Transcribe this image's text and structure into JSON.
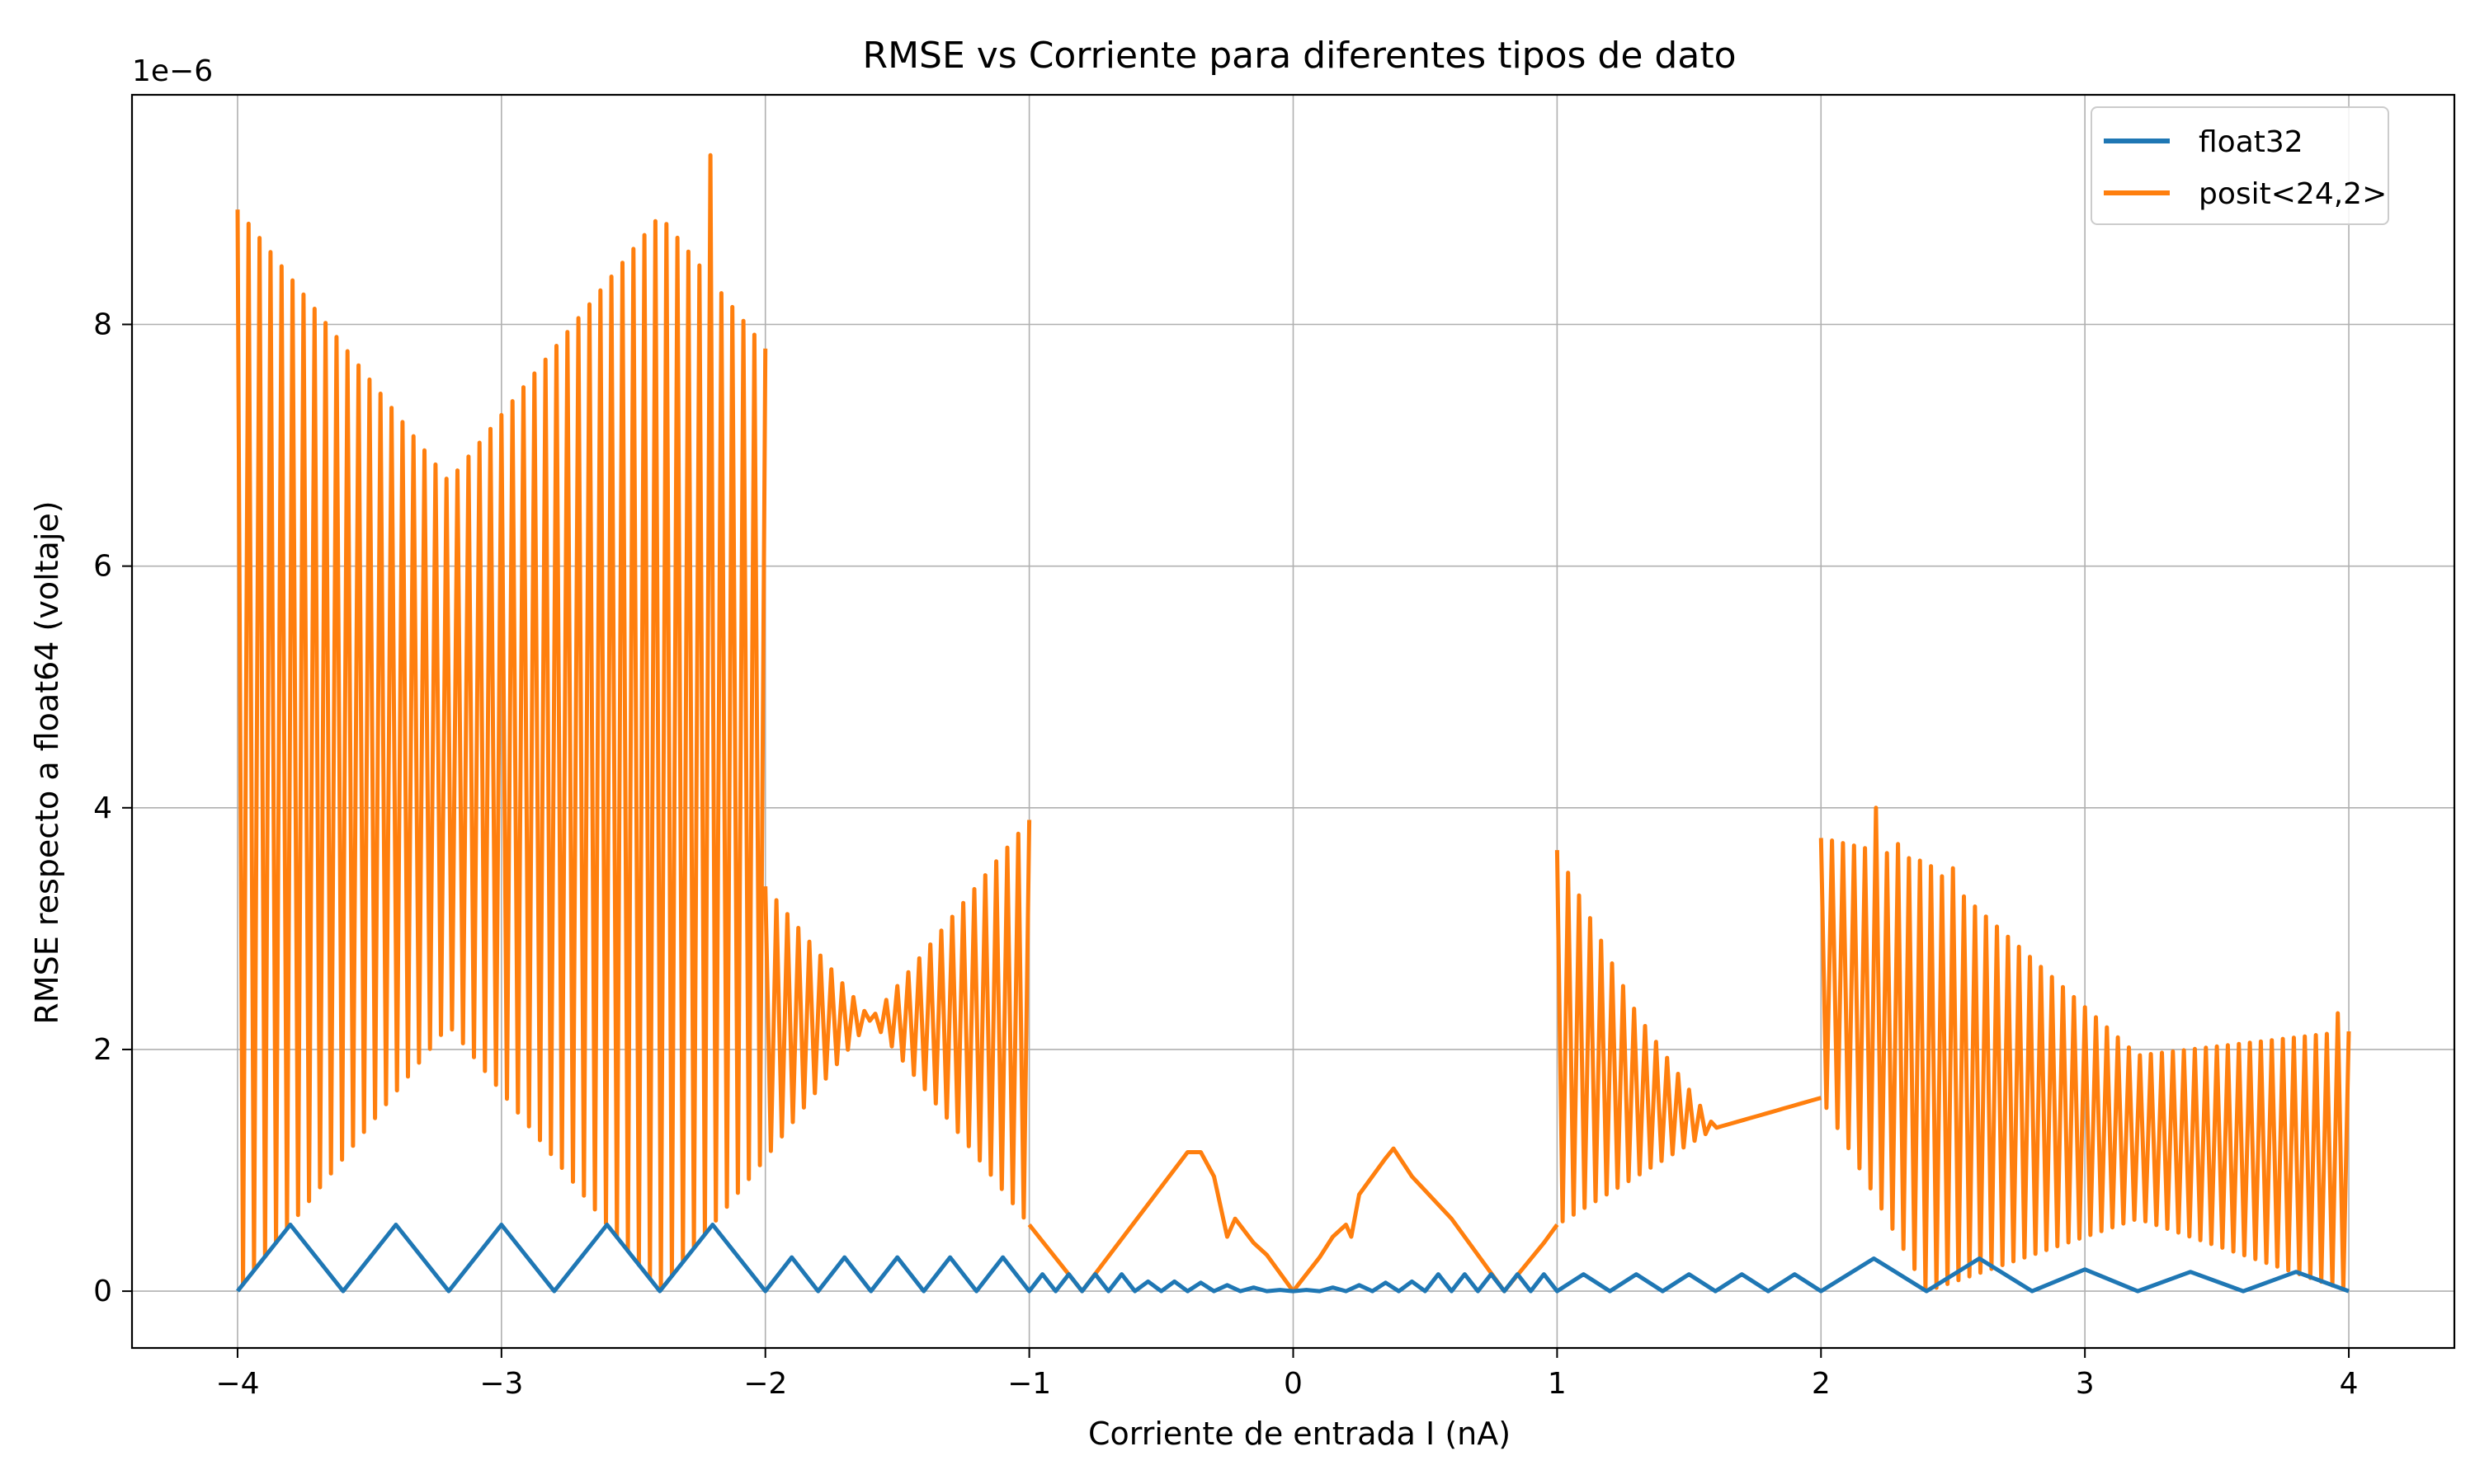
{
  "chart_data": {
    "type": "line",
    "title": "RMSE vs Corriente para diferentes tipos de dato",
    "xlabel": "Corriente de entrada I (nA)",
    "ylabel": "RMSE respecto a float64 (voltaje)",
    "y_offset_label": "1e−6",
    "xlim": [
      -4.4,
      4.4
    ],
    "ylim": [
      -0.47,
      9.9
    ],
    "y_scale_factor": 1e-06,
    "x_ticks": [
      -4,
      -3,
      -2,
      -1,
      0,
      1,
      2,
      3,
      4
    ],
    "x_tick_labels": [
      "−4",
      "−3",
      "−2",
      "−1",
      "0",
      "1",
      "2",
      "3",
      "4"
    ],
    "y_ticks": [
      0,
      2,
      4,
      6,
      8
    ],
    "y_tick_labels": [
      "0",
      "2",
      "4",
      "6",
      "8"
    ],
    "grid": true,
    "legend_position": "top-right",
    "series": [
      {
        "name": "float32",
        "color": "#1f77b4",
        "x": [
          -4.0,
          -3.8,
          -3.6,
          -3.4,
          -3.2,
          -3.0,
          -2.8,
          -2.6,
          -2.4,
          -2.2,
          -2.0,
          -1.9,
          -1.8,
          -1.7,
          -1.6,
          -1.5,
          -1.4,
          -1.3,
          -1.2,
          -1.1,
          -1.0,
          -0.95,
          -0.9,
          -0.85,
          -0.8,
          -0.75,
          -0.7,
          -0.65,
          -0.6,
          -0.55,
          -0.5,
          -0.45,
          -0.4,
          -0.35,
          -0.3,
          -0.25,
          -0.2,
          -0.15,
          -0.1,
          -0.05,
          0.0,
          0.05,
          0.1,
          0.15,
          0.2,
          0.25,
          0.3,
          0.35,
          0.4,
          0.45,
          0.5,
          0.55,
          0.6,
          0.65,
          0.7,
          0.75,
          0.8,
          0.85,
          0.9,
          0.95,
          1.0,
          1.1,
          1.2,
          1.3,
          1.4,
          1.5,
          1.6,
          1.7,
          1.8,
          1.9,
          2.0,
          2.2,
          2.4,
          2.6,
          2.8,
          3.0,
          3.2,
          3.4,
          3.6,
          3.8,
          4.0
        ],
        "y": [
          0.0,
          0.55,
          0.0,
          0.55,
          0.0,
          0.55,
          0.0,
          0.55,
          0.0,
          0.55,
          0.0,
          0.28,
          0.0,
          0.28,
          0.0,
          0.28,
          0.0,
          0.28,
          0.0,
          0.28,
          0.0,
          0.14,
          0.0,
          0.14,
          0.0,
          0.14,
          0.0,
          0.14,
          0.0,
          0.08,
          0.0,
          0.08,
          0.0,
          0.07,
          0.0,
          0.05,
          0.0,
          0.03,
          0.0,
          0.01,
          0.0,
          0.01,
          0.0,
          0.03,
          0.0,
          0.05,
          0.0,
          0.07,
          0.0,
          0.08,
          0.0,
          0.14,
          0.0,
          0.14,
          0.0,
          0.14,
          0.0,
          0.14,
          0.0,
          0.14,
          0.0,
          0.14,
          0.0,
          0.14,
          0.0,
          0.14,
          0.0,
          0.14,
          0.0,
          0.14,
          0.0,
          0.27,
          0.0,
          0.27,
          0.0,
          0.18,
          0.0,
          0.16,
          0.0,
          0.16,
          0.0
        ]
      },
      {
        "name": "posit<24,2>",
        "color": "#ff7f0e",
        "segments": [
          {
            "style": "oscillating",
            "x_range": [
              -4.0,
              -2.0
            ],
            "upper_envelope": [
              [
                -4.0,
                8.95
              ],
              [
                -3.2,
                6.7
              ],
              [
                -2.4,
                8.9
              ],
              [
                -2.0,
                7.8
              ]
            ],
            "lower_envelope": [
              [
                -4.0,
                0.0
              ],
              [
                -3.2,
                2.2
              ],
              [
                -2.4,
                0.0
              ],
              [
                -2.0,
                1.1
              ]
            ],
            "spikes": [
              [
                -3.85,
                9.3
              ],
              [
                -2.6,
                9.4
              ],
              [
                -2.2,
                9.4
              ]
            ]
          },
          {
            "style": "oscillating",
            "x_range": [
              -2.0,
              -1.0
            ],
            "upper_envelope": [
              [
                -2.0,
                3.35
              ],
              [
                -1.6,
                2.25
              ],
              [
                -1.0,
                3.9
              ]
            ],
            "lower_envelope": [
              [
                -2.0,
                1.1
              ],
              [
                -1.6,
                2.25
              ],
              [
                -1.0,
                0.55
              ]
            ]
          },
          {
            "style": "line",
            "points": [
              [
                -1.0,
                0.55
              ],
              [
                -0.8,
                0.0
              ],
              [
                -0.4,
                1.15
              ],
              [
                -0.35,
                1.15
              ],
              [
                -0.3,
                0.95
              ],
              [
                -0.25,
                0.45
              ],
              [
                -0.22,
                0.6
              ],
              [
                -0.15,
                0.4
              ],
              [
                -0.1,
                0.3
              ],
              [
                0.0,
                0.0
              ],
              [
                0.1,
                0.28
              ],
              [
                0.15,
                0.45
              ],
              [
                0.2,
                0.55
              ],
              [
                0.22,
                0.45
              ],
              [
                0.25,
                0.8
              ],
              [
                0.35,
                1.1
              ],
              [
                0.38,
                1.18
              ],
              [
                0.45,
                0.95
              ],
              [
                0.6,
                0.6
              ],
              [
                0.8,
                0.0
              ],
              [
                0.95,
                0.4
              ],
              [
                1.0,
                0.55
              ]
            ]
          },
          {
            "style": "oscillating",
            "x_range": [
              1.0,
              2.0
            ],
            "upper_envelope": [
              [
                1.0,
                3.65
              ],
              [
                1.3,
                2.3
              ],
              [
                1.6,
                1.35
              ],
              [
                2.0,
                1.6
              ]
            ],
            "lower_envelope": [
              [
                1.0,
                0.55
              ],
              [
                1.3,
                0.95
              ],
              [
                1.6,
                1.35
              ],
              [
                2.0,
                1.6
              ]
            ]
          },
          {
            "style": "oscillating",
            "x_range": [
              2.0,
              4.0
            ],
            "upper_envelope": [
              [
                2.0,
                3.75
              ],
              [
                2.4,
                3.55
              ],
              [
                3.2,
                1.95
              ],
              [
                4.0,
                2.15
              ]
            ],
            "lower_envelope": [
              [
                2.0,
                1.6
              ],
              [
                2.4,
                0.0
              ],
              [
                3.2,
                0.6
              ],
              [
                4.0,
                0.0
              ]
            ],
            "spikes": [
              [
                2.22,
                4.0
              ],
              [
                2.3,
                3.7
              ],
              [
                2.5,
                3.5
              ],
              [
                3.95,
                2.3
              ]
            ]
          }
        ]
      }
    ]
  }
}
